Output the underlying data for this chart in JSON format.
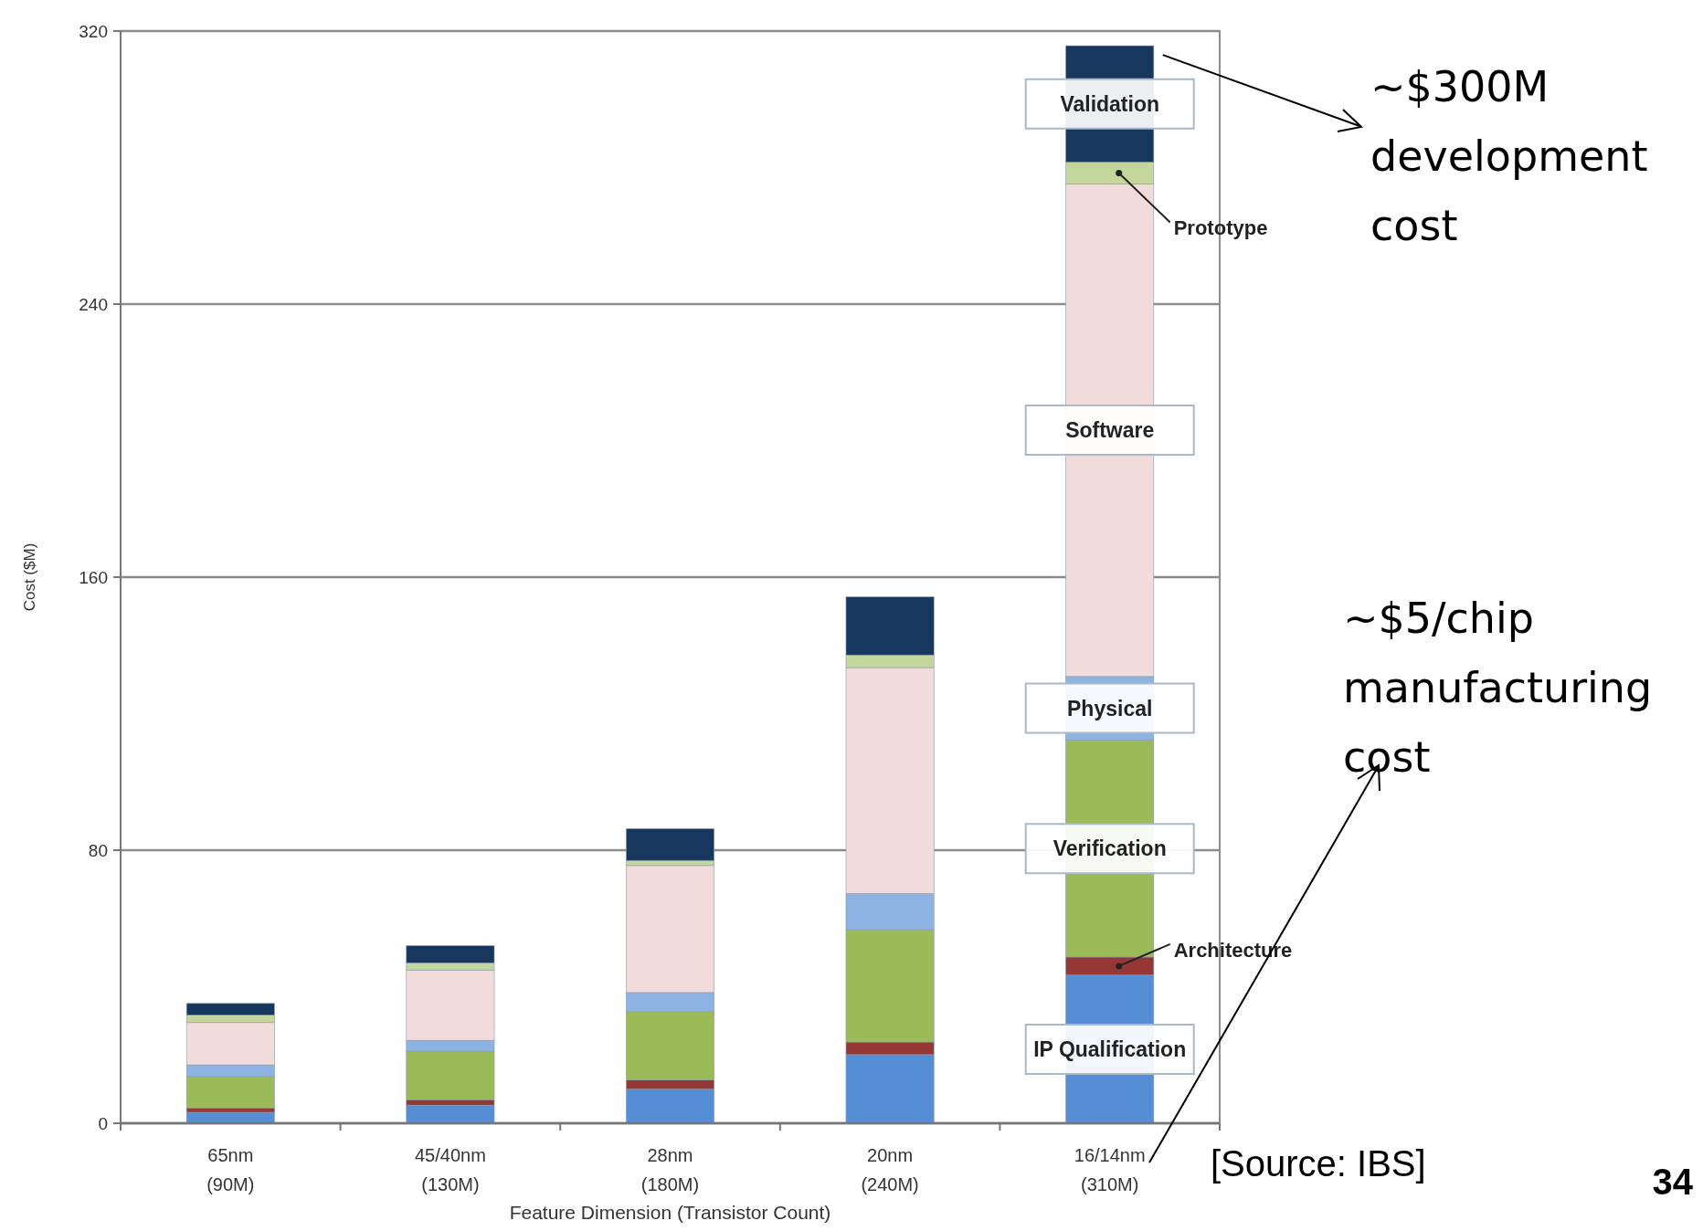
{
  "chart_data": {
    "type": "bar",
    "stacked": true,
    "xlabel": "Feature Dimension (Transistor Count)",
    "ylabel": "Cost ($M)",
    "categories": [
      "65nm\n(90M)",
      "45/40nm\n(130M)",
      "28nm\n(180M)",
      "20nm\n(240M)",
      "16/14nm\n(310M)"
    ],
    "series": [
      {
        "name": "IP Qualification",
        "color": "#558ed5",
        "values": [
          3.2,
          5.3,
          10,
          20.1,
          43.4
        ]
      },
      {
        "name": "Architecture",
        "color": "#953735",
        "values": [
          1.3,
          1.6,
          2.7,
          3.7,
          5.3
        ]
      },
      {
        "name": "Verification",
        "color": "#9bbb59",
        "values": [
          9.2,
          14.2,
          20,
          32.9,
          63.6
        ]
      },
      {
        "name": "Physical",
        "color": "#8db3e2",
        "values": [
          3.4,
          3.2,
          5.6,
          10.6,
          18.6
        ]
      },
      {
        "name": "Software",
        "color": "#f2dcdb",
        "values": [
          12.4,
          20.6,
          37.2,
          66.2,
          144.3
        ]
      },
      {
        "name": "Prototype",
        "color": "#c3d69b",
        "values": [
          2.2,
          2.1,
          1.5,
          3.7,
          6.4
        ]
      },
      {
        "name": "Validation",
        "color": "#17375e",
        "values": [
          3.4,
          5,
          9.3,
          17,
          34.1
        ]
      }
    ],
    "ylim": [
      0,
      320
    ],
    "yticks": [
      0,
      80,
      160,
      240,
      320
    ],
    "grid": "y",
    "annotations": [
      "~$300M\ndevelopment\ncost",
      "~$5/chip\nmanufacturing\ncost",
      "[Source: IBS]",
      "34"
    ]
  }
}
